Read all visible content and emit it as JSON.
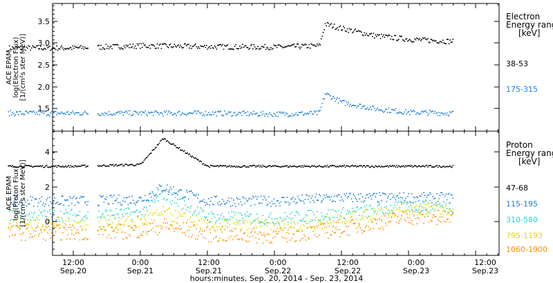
{
  "chart_data": [
    {
      "type": "scatter",
      "panel": "electron",
      "ylabel_lines": [
        "ACE EPAM",
        "log(Electron Flux)",
        "[1/(cm²s ster MeV)]"
      ],
      "yticks": [
        "1.5",
        "2.0",
        "2.5",
        "3.0",
        "3.5"
      ],
      "ylim": [
        1.1,
        3.8
      ],
      "legend_title_lines": [
        "Electron",
        "Energy ranges",
        "[keV]"
      ],
      "x": [
        "Sep.20 12:00",
        "Sep.21 00:00",
        "Sep.21 12:00",
        "Sep.22 00:00",
        "Sep.22 08:00",
        "Sep.22 09:00",
        "Sep.22 12:00",
        "Sep.22 18:00",
        "Sep.23 00:00",
        "Sep.23 08:00"
      ],
      "series": [
        {
          "name": "38-53",
          "color": "#000000",
          "values": [
            2.9,
            2.95,
            2.93,
            2.92,
            2.95,
            3.45,
            3.35,
            3.18,
            3.1,
            3.05
          ]
        },
        {
          "name": "175-315",
          "color": "#1f7fdc",
          "values": [
            1.4,
            1.4,
            1.4,
            1.38,
            1.4,
            1.85,
            1.65,
            1.5,
            1.42,
            1.4
          ]
        }
      ]
    },
    {
      "type": "scatter",
      "panel": "proton",
      "ylabel_lines": [
        "ACE EPAM",
        "log(Proton Flux)",
        "[1/(cm²s ster MeV)]"
      ],
      "yticks": [
        "0",
        "2",
        "4"
      ],
      "ylim": [
        -2,
        5.2
      ],
      "legend_title_lines": [
        "Proton",
        "Energy ranges",
        "[keV]"
      ],
      "x": [
        "Sep.20 12:00",
        "Sep.21 00:00",
        "Sep.21 04:00",
        "Sep.21 12:00",
        "Sep.22 00:00",
        "Sep.22 12:00",
        "Sep.23 00:00",
        "Sep.23 08:00"
      ],
      "series": [
        {
          "name": "47-68",
          "color": "#000000",
          "values": [
            3.2,
            3.3,
            4.8,
            3.2,
            3.2,
            3.2,
            3.2,
            3.2
          ]
        },
        {
          "name": "115-195",
          "color": "#1f7fdc",
          "values": [
            1.2,
            1.3,
            2.0,
            1.2,
            1.2,
            1.4,
            1.4,
            1.4
          ]
        },
        {
          "name": "310-580",
          "color": "#22d8cc",
          "values": [
            0.4,
            0.5,
            1.6,
            0.3,
            0.2,
            0.5,
            0.9,
            0.9
          ]
        },
        {
          "name": "795-1193",
          "color": "#dede00",
          "values": [
            -0.1,
            0.0,
            0.5,
            -0.2,
            -0.3,
            0.1,
            0.8,
            0.7
          ]
        },
        {
          "name": "1060-1900",
          "color": "#ff8c00",
          "values": [
            -0.6,
            -0.5,
            -0.2,
            -0.7,
            -0.8,
            -0.4,
            0.3,
            0.2
          ]
        }
      ]
    }
  ],
  "x_axis": {
    "ticks": [
      {
        "time": "12:00",
        "date": "Sep.20"
      },
      {
        "time": "0:00",
        "date": "Sep.21"
      },
      {
        "time": "12:00",
        "date": "Sep.21"
      },
      {
        "time": "0:00",
        "date": "Sep.22"
      },
      {
        "time": "12:00",
        "date": "Sep.22"
      },
      {
        "time": "0:00",
        "date": "Sep.23"
      },
      {
        "time": "12:00",
        "date": "Sep.23"
      }
    ],
    "xlabel": "hours:minutes, Sep. 20, 2014 - Sep. 23, 2014"
  }
}
